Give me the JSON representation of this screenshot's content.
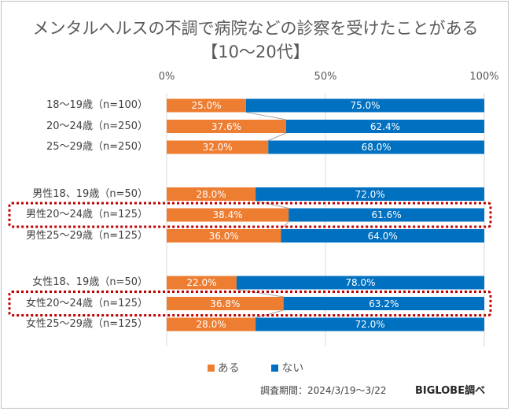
{
  "chart_data": {
    "type": "bar",
    "orientation": "horizontal",
    "stacked": "percent",
    "title": "メンタルヘルスの不調で病院などの診察を受けたことがある",
    "subtitle": "【10～20代】",
    "x_ticks": [
      "0%",
      "50%",
      "100%"
    ],
    "xlim": [
      0,
      100
    ],
    "groups": [
      {
        "categories": [
          {
            "label": "18～19歳（n=100）",
            "values": [
              25.0,
              75.0
            ],
            "labels": [
              "25.0%",
              "75.0%"
            ],
            "highlighted": false
          },
          {
            "label": "20～24歳（n=250）",
            "values": [
              37.6,
              62.4
            ],
            "labels": [
              "37.6%",
              "62.4%"
            ],
            "highlighted": false
          },
          {
            "label": "25～29歳（n=250）",
            "values": [
              32.0,
              68.0
            ],
            "labels": [
              "32.0%",
              "68.0%"
            ],
            "highlighted": false
          }
        ]
      },
      {
        "categories": [
          {
            "label": "男性18、19歳（n=50）",
            "values": [
              28.0,
              72.0
            ],
            "labels": [
              "28.0%",
              "72.0%"
            ],
            "highlighted": false
          },
          {
            "label": "男性20～24歳（n=125）",
            "values": [
              38.4,
              61.6
            ],
            "labels": [
              "38.4%",
              "61.6%"
            ],
            "highlighted": true
          },
          {
            "label": "男性25～29歳（n=125）",
            "values": [
              36.0,
              64.0
            ],
            "labels": [
              "36.0%",
              "64.0%"
            ],
            "highlighted": false
          }
        ]
      },
      {
        "categories": [
          {
            "label": "女性18、19歳（n=50）",
            "values": [
              22.0,
              78.0
            ],
            "labels": [
              "22.0%",
              "78.0%"
            ],
            "highlighted": false
          },
          {
            "label": "女性20～24歳（n=125）",
            "values": [
              36.8,
              63.2
            ],
            "labels": [
              "36.8%",
              "63.2%"
            ],
            "highlighted": true
          },
          {
            "label": "女性25～29歳（n=125）",
            "values": [
              28.0,
              72.0
            ],
            "labels": [
              "28.0%",
              "72.0%"
            ],
            "highlighted": false
          }
        ]
      }
    ],
    "series": [
      {
        "name": "ある",
        "color": "#ed7d31"
      },
      {
        "name": "ない",
        "color": "#0070c0"
      }
    ],
    "series_lines": true,
    "highlight_color": "#c00000",
    "grid": true,
    "legend_position": "bottom-center"
  },
  "footnote": "調査期間：2024/3/19～3/22",
  "brand": "BIGLOBE調べ"
}
